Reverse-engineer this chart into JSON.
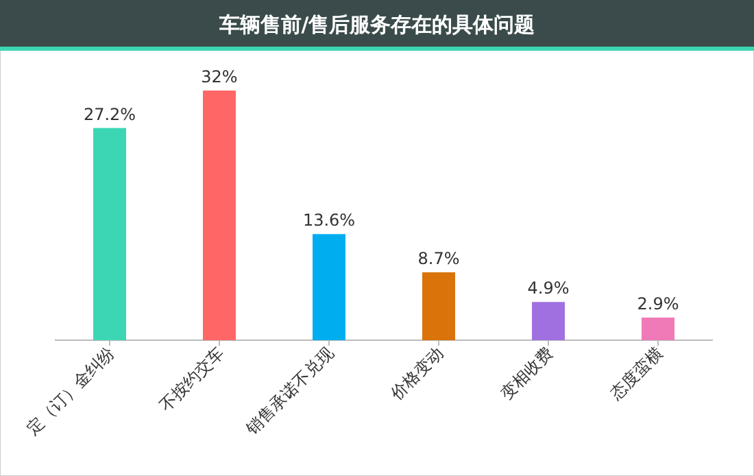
{
  "chart_data": {
    "type": "bar",
    "title": "车辆售前/售后服务存在的具体问题",
    "categories": [
      "定（订）金纠纷",
      "不按约交车",
      "销售承诺不兑现",
      "价格变动",
      "变相收费",
      "态度蛮横"
    ],
    "values": [
      27.2,
      32,
      13.6,
      8.7,
      4.9,
      2.9
    ],
    "colors": [
      "#3dd6b5",
      "#ff6666",
      "#00aeef",
      "#d9730a",
      "#a070e0",
      "#f07ab8"
    ],
    "value_labels": [
      "27.2%",
      "32%",
      "13.6%",
      "8.7%",
      "4.9%",
      "2.9%"
    ]
  }
}
